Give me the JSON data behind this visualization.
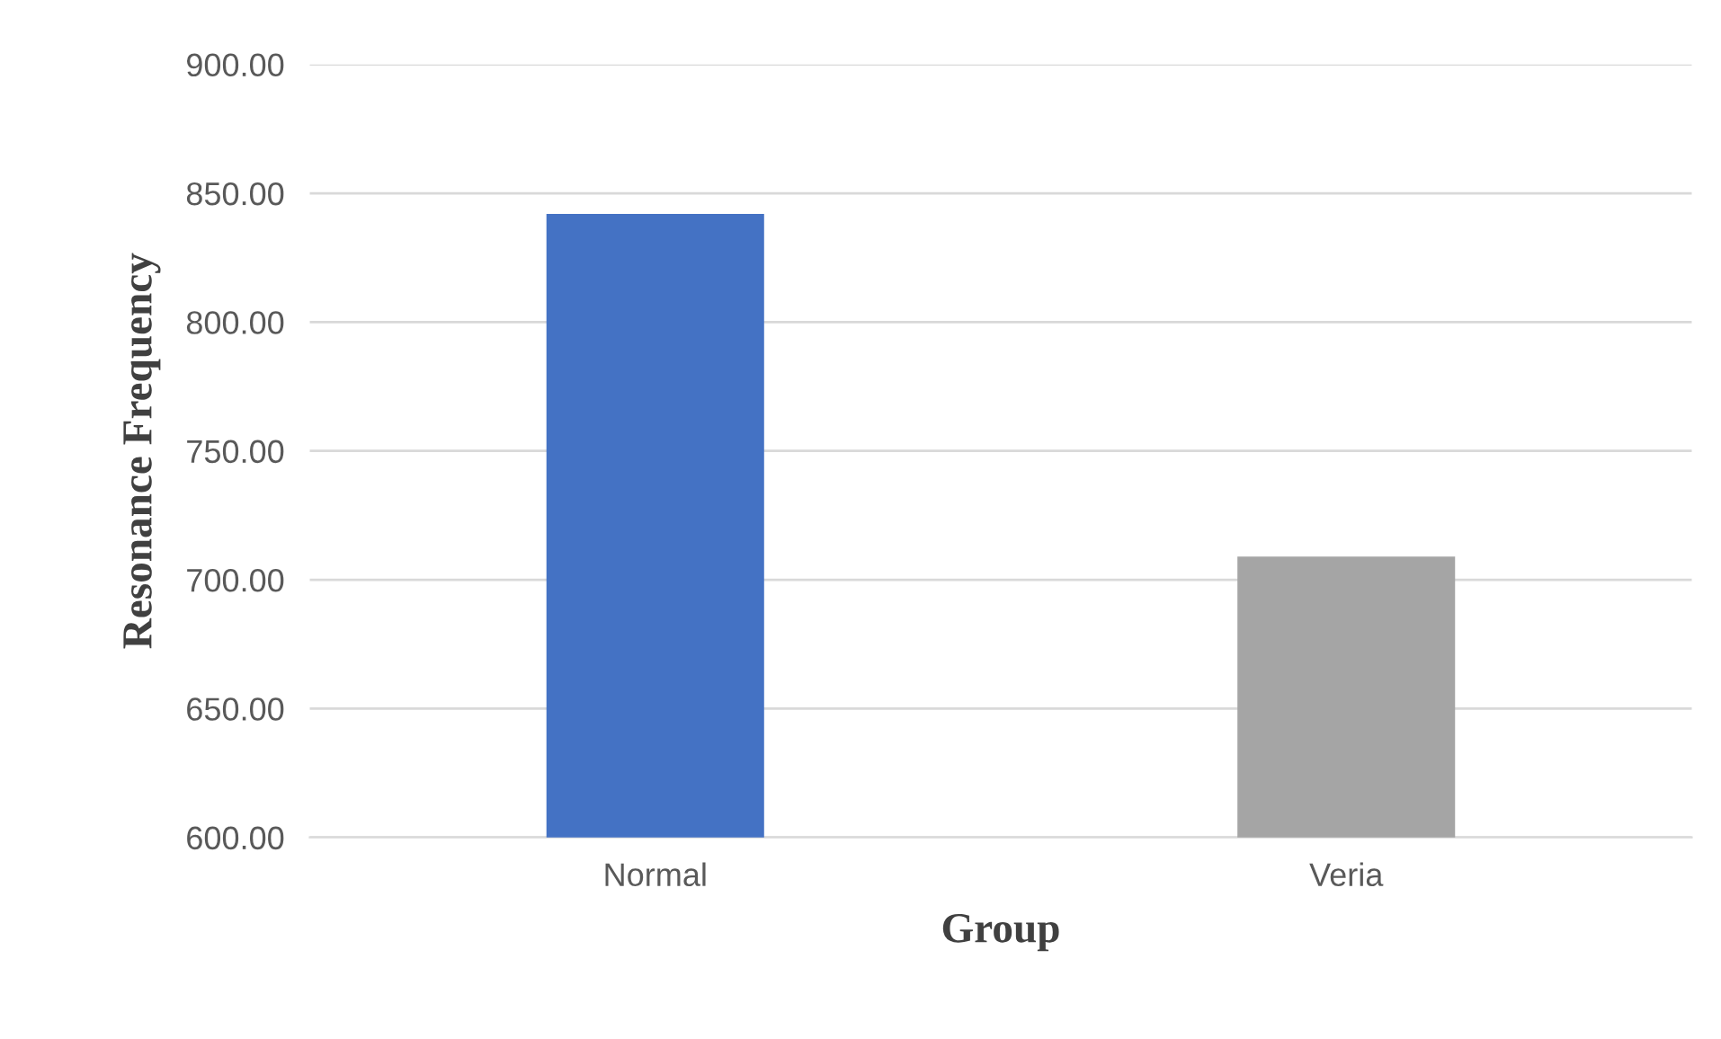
{
  "chart_data": {
    "type": "bar",
    "xlabel": "Group",
    "ylabel": "Resonance Frequency",
    "categories": [
      "Normal",
      "Veria"
    ],
    "values": [
      842,
      709
    ],
    "colors": [
      "#4472c4",
      "#a5a5a5"
    ],
    "ylim": [
      600,
      900
    ],
    "yticks": [
      {
        "value": 600,
        "label": "600.00"
      },
      {
        "value": 650,
        "label": "650.00"
      },
      {
        "value": 700,
        "label": "700.00"
      },
      {
        "value": 750,
        "label": "750.00"
      },
      {
        "value": 800,
        "label": "800.00"
      },
      {
        "value": 850,
        "label": "850.00"
      },
      {
        "value": 900,
        "label": "900.00"
      }
    ],
    "grid": "y",
    "legend": false
  }
}
